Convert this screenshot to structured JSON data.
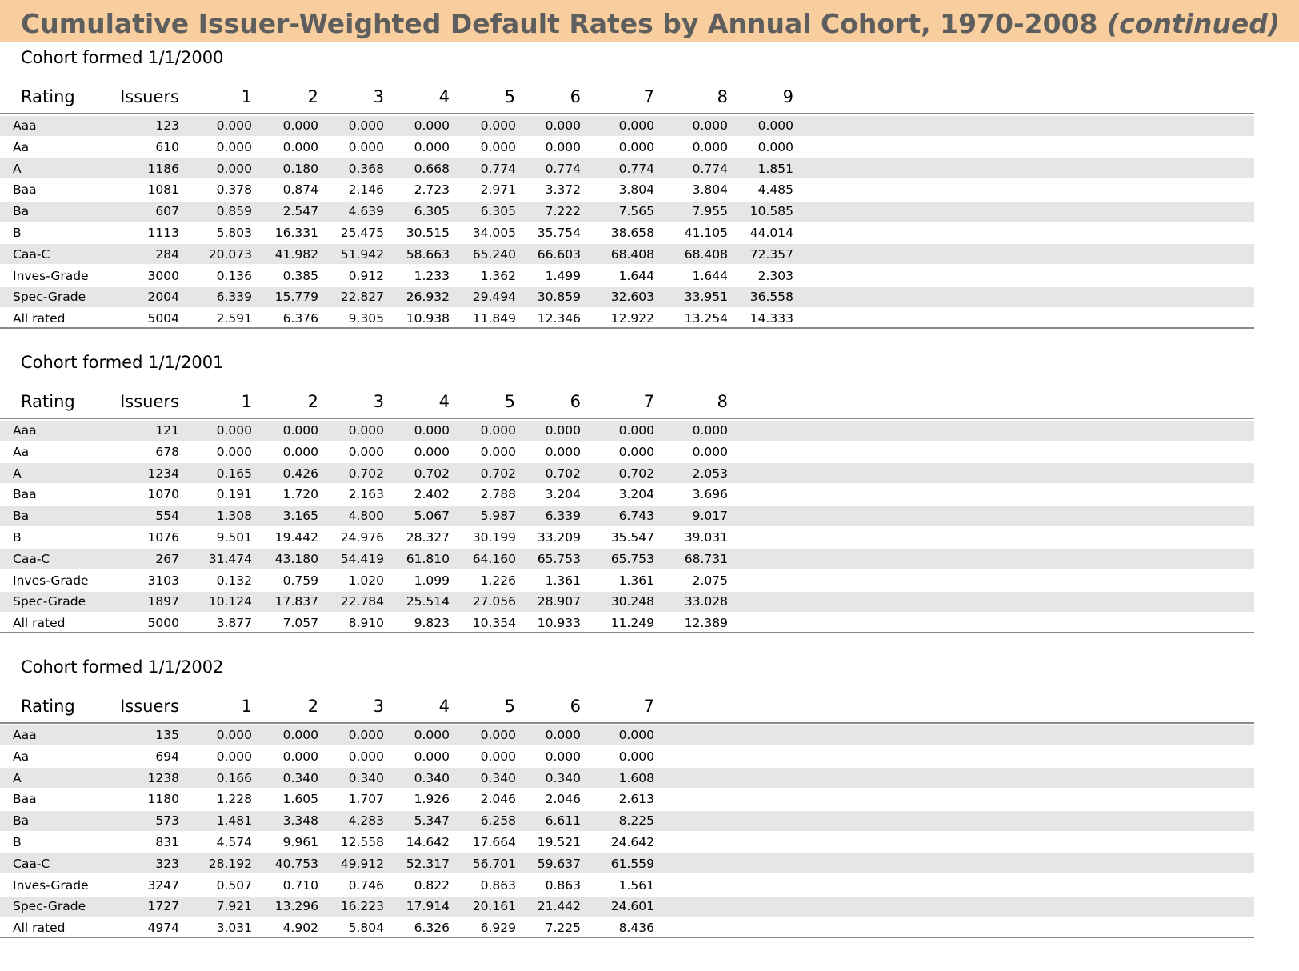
{
  "header": {
    "title": "Cumulative Issuer-Weighted Default Rates by Annual Cohort, 1970-2008",
    "continued": "(continued)"
  },
  "cohorts": [
    {
      "label": "Cohort formed 1/1/2000",
      "columns": [
        "Rating",
        "Issuers",
        "1",
        "2",
        "3",
        "4",
        "5",
        "6",
        "7",
        "8",
        "9"
      ],
      "rows": [
        [
          "Aaa",
          "123",
          "0.000",
          "0.000",
          "0.000",
          "0.000",
          "0.000",
          "0.000",
          "0.000",
          "0.000",
          "0.000"
        ],
        [
          "Aa",
          "610",
          "0.000",
          "0.000",
          "0.000",
          "0.000",
          "0.000",
          "0.000",
          "0.000",
          "0.000",
          "0.000"
        ],
        [
          "A",
          "1186",
          "0.000",
          "0.180",
          "0.368",
          "0.668",
          "0.774",
          "0.774",
          "0.774",
          "0.774",
          "1.851"
        ],
        [
          "Baa",
          "1081",
          "0.378",
          "0.874",
          "2.146",
          "2.723",
          "2.971",
          "3.372",
          "3.804",
          "3.804",
          "4.485"
        ],
        [
          "Ba",
          "607",
          "0.859",
          "2.547",
          "4.639",
          "6.305",
          "6.305",
          "7.222",
          "7.565",
          "7.955",
          "10.585"
        ],
        [
          "B",
          "1113",
          "5.803",
          "16.331",
          "25.475",
          "30.515",
          "34.005",
          "35.754",
          "38.658",
          "41.105",
          "44.014"
        ],
        [
          "Caa-C",
          "284",
          "20.073",
          "41.982",
          "51.942",
          "58.663",
          "65.240",
          "66.603",
          "68.408",
          "68.408",
          "72.357"
        ],
        [
          "Inves-Grade",
          "3000",
          "0.136",
          "0.385",
          "0.912",
          "1.233",
          "1.362",
          "1.499",
          "1.644",
          "1.644",
          "2.303"
        ],
        [
          "Spec-Grade",
          "2004",
          "6.339",
          "15.779",
          "22.827",
          "26.932",
          "29.494",
          "30.859",
          "32.603",
          "33.951",
          "36.558"
        ],
        [
          "All rated",
          "5004",
          "2.591",
          "6.376",
          "9.305",
          "10.938",
          "11.849",
          "12.346",
          "12.922",
          "13.254",
          "14.333"
        ]
      ]
    },
    {
      "label": "Cohort formed 1/1/2001",
      "columns": [
        "Rating",
        "Issuers",
        "1",
        "2",
        "3",
        "4",
        "5",
        "6",
        "7",
        "8"
      ],
      "rows": [
        [
          "Aaa",
          "121",
          "0.000",
          "0.000",
          "0.000",
          "0.000",
          "0.000",
          "0.000",
          "0.000",
          "0.000"
        ],
        [
          "Aa",
          "678",
          "0.000",
          "0.000",
          "0.000",
          "0.000",
          "0.000",
          "0.000",
          "0.000",
          "0.000"
        ],
        [
          "A",
          "1234",
          "0.165",
          "0.426",
          "0.702",
          "0.702",
          "0.702",
          "0.702",
          "0.702",
          "2.053"
        ],
        [
          "Baa",
          "1070",
          "0.191",
          "1.720",
          "2.163",
          "2.402",
          "2.788",
          "3.204",
          "3.204",
          "3.696"
        ],
        [
          "Ba",
          "554",
          "1.308",
          "3.165",
          "4.800",
          "5.067",
          "5.987",
          "6.339",
          "6.743",
          "9.017"
        ],
        [
          "B",
          "1076",
          "9.501",
          "19.442",
          "24.976",
          "28.327",
          "30.199",
          "33.209",
          "35.547",
          "39.031"
        ],
        [
          "Caa-C",
          "267",
          "31.474",
          "43.180",
          "54.419",
          "61.810",
          "64.160",
          "65.753",
          "65.753",
          "68.731"
        ],
        [
          "Inves-Grade",
          "3103",
          "0.132",
          "0.759",
          "1.020",
          "1.099",
          "1.226",
          "1.361",
          "1.361",
          "2.075"
        ],
        [
          "Spec-Grade",
          "1897",
          "10.124",
          "17.837",
          "22.784",
          "25.514",
          "27.056",
          "28.907",
          "30.248",
          "33.028"
        ],
        [
          "All rated",
          "5000",
          "3.877",
          "7.057",
          "8.910",
          "9.823",
          "10.354",
          "10.933",
          "11.249",
          "12.389"
        ]
      ]
    },
    {
      "label": "Cohort formed 1/1/2002",
      "columns": [
        "Rating",
        "Issuers",
        "1",
        "2",
        "3",
        "4",
        "5",
        "6",
        "7"
      ],
      "rows": [
        [
          "Aaa",
          "135",
          "0.000",
          "0.000",
          "0.000",
          "0.000",
          "0.000",
          "0.000",
          "0.000"
        ],
        [
          "Aa",
          "694",
          "0.000",
          "0.000",
          "0.000",
          "0.000",
          "0.000",
          "0.000",
          "0.000"
        ],
        [
          "A",
          "1238",
          "0.166",
          "0.340",
          "0.340",
          "0.340",
          "0.340",
          "0.340",
          "1.608"
        ],
        [
          "Baa",
          "1180",
          "1.228",
          "1.605",
          "1.707",
          "1.926",
          "2.046",
          "2.046",
          "2.613"
        ],
        [
          "Ba",
          "573",
          "1.481",
          "3.348",
          "4.283",
          "5.347",
          "6.258",
          "6.611",
          "8.225"
        ],
        [
          "B",
          "831",
          "4.574",
          "9.961",
          "12.558",
          "14.642",
          "17.664",
          "19.521",
          "24.642"
        ],
        [
          "Caa-C",
          "323",
          "28.192",
          "40.753",
          "49.912",
          "52.317",
          "56.701",
          "59.637",
          "61.559"
        ],
        [
          "Inves-Grade",
          "3247",
          "0.507",
          "0.710",
          "0.746",
          "0.822",
          "0.863",
          "0.863",
          "1.561"
        ],
        [
          "Spec-Grade",
          "1727",
          "7.921",
          "13.296",
          "16.223",
          "17.914",
          "20.161",
          "21.442",
          "24.601"
        ],
        [
          "All rated",
          "4974",
          "3.031",
          "4.902",
          "5.804",
          "6.326",
          "6.929",
          "7.225",
          "8.436"
        ]
      ]
    }
  ]
}
